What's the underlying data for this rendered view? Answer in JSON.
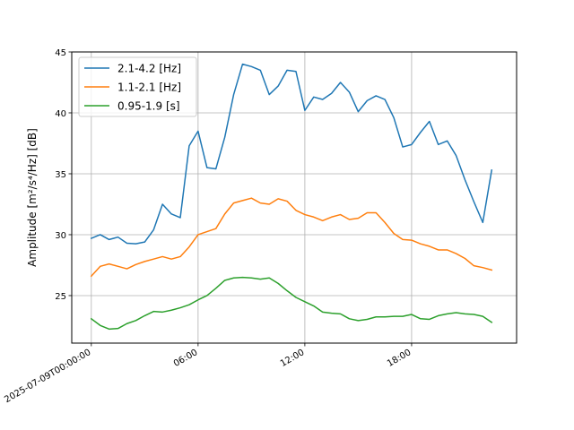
{
  "chart_data": {
    "type": "line",
    "title": "",
    "xlabel": "",
    "ylabel": "Amplitude [m²/s⁴/Hz] [dB]",
    "xlim": [
      "2025-07-08T22:54:00",
      "2025-07-09T23:54:00"
    ],
    "ylim": [
      21.1,
      45.0
    ],
    "grid": true,
    "legend_position": "top-left",
    "x_ticks": [
      {
        "value": "2025-07-09T00:00:00",
        "label": "2025-07-09T00:00:00"
      },
      {
        "value": "2025-07-09T06:00:00",
        "label": "06:00"
      },
      {
        "value": "2025-07-09T12:00:00",
        "label": "12:00"
      },
      {
        "value": "2025-07-09T18:00:00",
        "label": "18:00"
      }
    ],
    "y_ticks": [
      25,
      30,
      35,
      40,
      45
    ],
    "x": [
      "2025-07-09T00:00:00",
      "2025-07-09T00:30:00",
      "2025-07-09T01:00:00",
      "2025-07-09T01:30:00",
      "2025-07-09T02:00:00",
      "2025-07-09T02:30:00",
      "2025-07-09T03:00:00",
      "2025-07-09T03:30:00",
      "2025-07-09T04:00:00",
      "2025-07-09T04:30:00",
      "2025-07-09T05:00:00",
      "2025-07-09T05:30:00",
      "2025-07-09T06:00:00",
      "2025-07-09T06:30:00",
      "2025-07-09T07:00:00",
      "2025-07-09T07:30:00",
      "2025-07-09T08:00:00",
      "2025-07-09T08:30:00",
      "2025-07-09T09:00:00",
      "2025-07-09T09:30:00",
      "2025-07-09T10:00:00",
      "2025-07-09T10:30:00",
      "2025-07-09T11:00:00",
      "2025-07-09T11:30:00",
      "2025-07-09T12:00:00",
      "2025-07-09T12:30:00",
      "2025-07-09T13:00:00",
      "2025-07-09T13:30:00",
      "2025-07-09T14:00:00",
      "2025-07-09T14:30:00",
      "2025-07-09T15:00:00",
      "2025-07-09T15:30:00",
      "2025-07-09T16:00:00",
      "2025-07-09T16:30:00",
      "2025-07-09T17:00:00",
      "2025-07-09T17:30:00",
      "2025-07-09T18:00:00",
      "2025-07-09T18:30:00",
      "2025-07-09T19:00:00",
      "2025-07-09T19:30:00",
      "2025-07-09T20:00:00",
      "2025-07-09T20:30:00",
      "2025-07-09T21:00:00",
      "2025-07-09T21:30:00",
      "2025-07-09T22:00:00",
      "2025-07-09T22:30:00"
    ],
    "series": [
      {
        "name": "2.1-4.2 [Hz]",
        "color": "#1f77b4",
        "values": [
          29.7,
          30.0,
          29.6,
          29.8,
          29.3,
          29.25,
          29.4,
          30.4,
          32.5,
          31.7,
          31.4,
          37.3,
          38.5,
          35.5,
          35.4,
          38.0,
          41.5,
          44.0,
          43.8,
          43.5,
          41.5,
          42.2,
          43.5,
          43.4,
          40.2,
          41.3,
          41.1,
          41.6,
          42.5,
          41.7,
          40.1,
          41.0,
          41.4,
          41.1,
          39.6,
          37.2,
          37.4,
          38.4,
          39.3,
          37.4,
          37.7,
          36.5,
          34.5,
          32.7,
          31.0,
          35.3
        ]
      },
      {
        "name": "1.1-2.1 [Hz]",
        "color": "#ff7f0e",
        "values": [
          26.6,
          27.4,
          27.6,
          27.4,
          27.2,
          27.55,
          27.8,
          28.0,
          28.2,
          28.0,
          28.2,
          29.0,
          30.0,
          30.25,
          30.5,
          31.7,
          32.6,
          32.8,
          33.0,
          32.6,
          32.5,
          32.95,
          32.75,
          32.0,
          31.65,
          31.45,
          31.15,
          31.45,
          31.65,
          31.25,
          31.35,
          31.8,
          31.8,
          31.0,
          30.1,
          29.6,
          29.55,
          29.25,
          29.05,
          28.75,
          28.75,
          28.45,
          28.05,
          27.45,
          27.3,
          27.1
        ]
      },
      {
        "name": "0.95-1.9 [s]",
        "color": "#2ca02c",
        "values": [
          23.1,
          22.55,
          22.25,
          22.3,
          22.7,
          22.95,
          23.35,
          23.7,
          23.65,
          23.8,
          24.0,
          24.25,
          24.65,
          25.0,
          25.6,
          26.25,
          26.45,
          26.5,
          26.45,
          26.35,
          26.45,
          26.0,
          25.4,
          24.85,
          24.5,
          24.15,
          23.65,
          23.55,
          23.5,
          23.1,
          22.95,
          23.05,
          23.25,
          23.25,
          23.3,
          23.3,
          23.45,
          23.1,
          23.05,
          23.35,
          23.5,
          23.6,
          23.5,
          23.45,
          23.3,
          22.8
        ]
      }
    ]
  }
}
